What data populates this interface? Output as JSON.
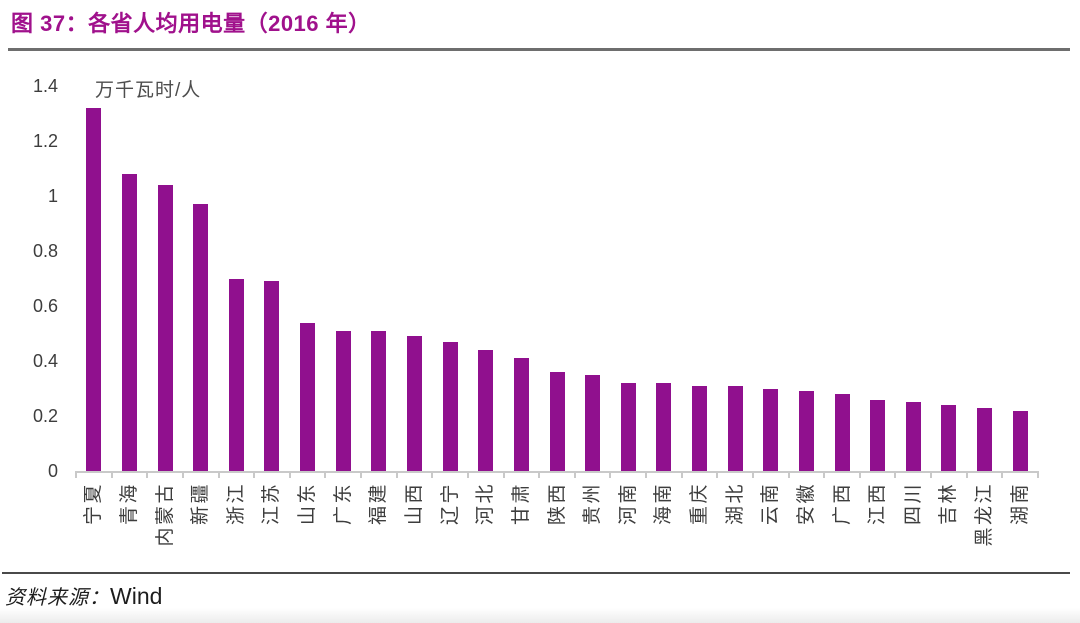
{
  "page": {
    "title": "图 37：各省人均用电量（2016 年）",
    "source": {
      "prefix": "资料来源：",
      "value": "Wind"
    }
  },
  "chart_data": {
    "type": "bar",
    "title": "各省人均用电量（2016 年）",
    "unit_label": "万千瓦时/人",
    "xlabel": "",
    "ylabel": "万千瓦时/人",
    "categories": [
      "宁夏",
      "青海",
      "内蒙古",
      "新疆",
      "浙江",
      "江苏",
      "山东",
      "广东",
      "福建",
      "山西",
      "辽宁",
      "河北",
      "甘肃",
      "陕西",
      "贵州",
      "河南",
      "海南",
      "重庆",
      "湖北",
      "云南",
      "安徽",
      "广西",
      "江西",
      "四川",
      "吉林",
      "黑龙江",
      "湖南"
    ],
    "values": [
      1.32,
      1.08,
      1.04,
      0.97,
      0.7,
      0.69,
      0.54,
      0.51,
      0.51,
      0.49,
      0.47,
      0.44,
      0.41,
      0.36,
      0.35,
      0.32,
      0.32,
      0.31,
      0.31,
      0.3,
      0.29,
      0.28,
      0.26,
      0.25,
      0.24,
      0.23,
      0.22
    ],
    "ylim": [
      0,
      1.4
    ],
    "ytick_labels": [
      "0",
      "0.2",
      "0.4",
      "0.6",
      "0.8",
      "1",
      "1.2",
      "1.4"
    ],
    "ytick_values": [
      0,
      0.2,
      0.4,
      0.6,
      0.8,
      1,
      1.2,
      1.4
    ],
    "x_label_rotation": -90,
    "grid": false,
    "legend": "none",
    "bar_color": "#90108E"
  },
  "colors": {
    "title_text": "#A0118C",
    "rule_top": "#6E6E6E",
    "rule_bottom": "#4A4A4A",
    "axis_line": "#C9C9C9",
    "tick_text": "#3D3D3D",
    "unit_text": "#4D4D4D"
  }
}
